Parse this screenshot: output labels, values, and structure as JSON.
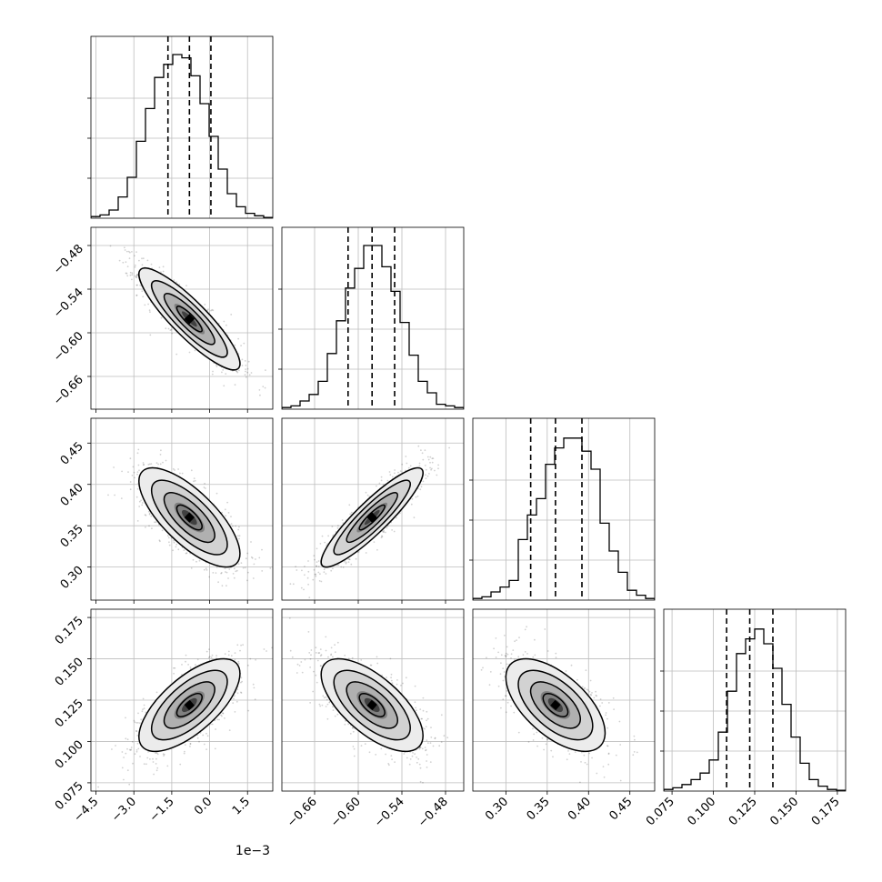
{
  "chart_data": {
    "type": "corner",
    "parameters": [
      {
        "range": [
          -4.7,
          2.5
        ],
        "ticks": [
          -4.5,
          -3.0,
          -1.5,
          0.0,
          1.5
        ],
        "tick_labels": [
          "−4.5",
          "−3.0",
          "−1.5",
          "0.0",
          "1.5"
        ],
        "offset_label": "1e−3",
        "quantiles": [
          -1.65,
          -0.8,
          0.05
        ],
        "hist": [
          0.01,
          0.02,
          0.05,
          0.13,
          0.25,
          0.47,
          0.67,
          0.86,
          0.94,
          1.0,
          0.98,
          0.87,
          0.7,
          0.5,
          0.3,
          0.15,
          0.07,
          0.03,
          0.015,
          0.005
        ]
      },
      {
        "range": [
          -0.705,
          -0.455
        ],
        "ticks": [
          -0.66,
          -0.6,
          -0.54,
          -0.48
        ],
        "tick_labels": [
          "−0.66",
          "−0.60",
          "−0.54",
          "−0.48"
        ],
        "quantiles": [
          -0.614,
          -0.581,
          -0.55
        ],
        "hist": [
          0.01,
          0.02,
          0.05,
          0.09,
          0.17,
          0.34,
          0.54,
          0.74,
          0.86,
          1.0,
          1.0,
          0.87,
          0.72,
          0.53,
          0.33,
          0.17,
          0.1,
          0.03,
          0.02,
          0.01
        ]
      },
      {
        "range": [
          0.26,
          0.48
        ],
        "ticks": [
          0.3,
          0.35,
          0.4,
          0.45
        ],
        "tick_labels": [
          "0.30",
          "0.35",
          "0.40",
          "0.45"
        ],
        "quantiles": [
          0.33,
          0.36,
          0.392
        ],
        "hist": [
          0.01,
          0.02,
          0.05,
          0.08,
          0.12,
          0.37,
          0.52,
          0.62,
          0.83,
          0.93,
          0.99,
          0.99,
          0.91,
          0.8,
          0.47,
          0.3,
          0.17,
          0.06,
          0.03,
          0.01
        ]
      },
      {
        "range": [
          0.07,
          0.18
        ],
        "ticks": [
          0.075,
          0.1,
          0.125,
          0.15,
          0.175
        ],
        "tick_labels": [
          "0.075",
          "0.100",
          "0.125",
          "0.150",
          "0.175"
        ],
        "quantiles": [
          0.108,
          0.122,
          0.136
        ],
        "hist": [
          0.01,
          0.02,
          0.04,
          0.07,
          0.11,
          0.19,
          0.36,
          0.61,
          0.84,
          0.93,
          0.99,
          0.9,
          0.75,
          0.53,
          0.33,
          0.17,
          0.07,
          0.03,
          0.01,
          0.005
        ]
      }
    ],
    "pairs": [
      {
        "row": 1,
        "col": 0,
        "center": [
          -0.8,
          -0.581
        ],
        "sd": [
          1.0,
          0.035
        ],
        "rho": -0.88
      },
      {
        "row": 2,
        "col": 0,
        "center": [
          -0.8,
          0.36
        ],
        "sd": [
          1.0,
          0.03
        ],
        "rho": -0.73
      },
      {
        "row": 2,
        "col": 1,
        "center": [
          -0.581,
          0.36
        ],
        "sd": [
          0.035,
          0.03
        ],
        "rho": 0.9
      },
      {
        "row": 3,
        "col": 0,
        "center": [
          -0.8,
          0.122
        ],
        "sd": [
          1.0,
          0.014
        ],
        "rho": 0.68
      },
      {
        "row": 3,
        "col": 1,
        "center": [
          -0.581,
          0.122
        ],
        "sd": [
          0.035,
          0.014
        ],
        "rho": -0.66
      },
      {
        "row": 3,
        "col": 2,
        "center": [
          0.36,
          0.122
        ],
        "sd": [
          0.03,
          0.014
        ],
        "rho": -0.6
      }
    ],
    "contour_levels_sigma": [
      0.5,
      1.0,
      1.5,
      2.0
    ],
    "grid": true
  }
}
